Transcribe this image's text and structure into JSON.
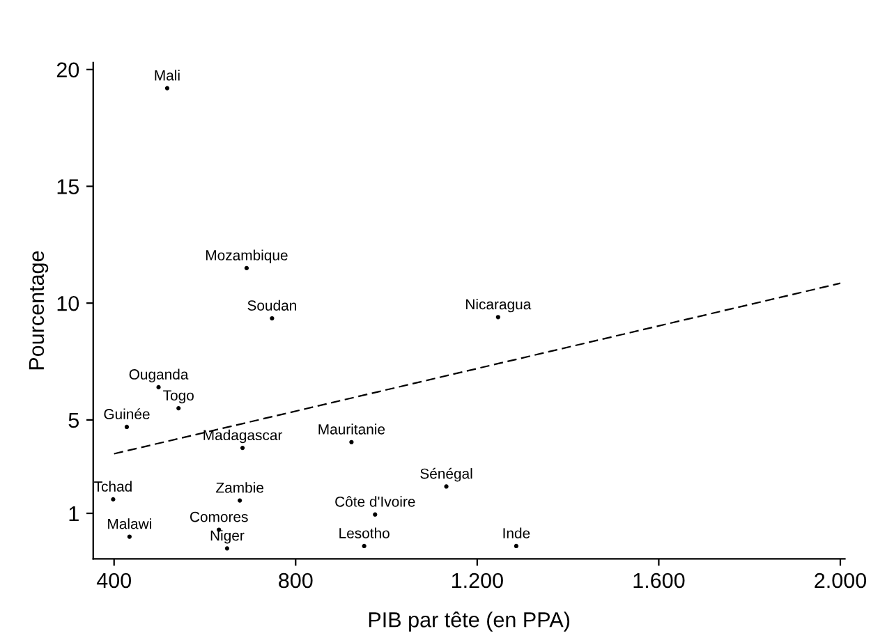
{
  "chart_data": {
    "type": "scatter",
    "xlabel": "PIB par tête (en PPA)",
    "ylabel": "Pourcentage",
    "xlim": [
      354,
      2010
    ],
    "ylim": [
      -0.95,
      20.3
    ],
    "xticks": [
      400,
      800,
      {
        "value": 1200,
        "label": "1.200"
      },
      {
        "value": 1600,
        "label": "1.600"
      },
      {
        "value": 2000,
        "label": "2.000"
      }
    ],
    "yticks": [
      1,
      5,
      10,
      15,
      20
    ],
    "grid": false,
    "legend": false,
    "series": [
      {
        "marker": "circle",
        "color": "#000000",
        "x": [
          517,
          692,
          748,
          498,
          542,
          428,
          683,
          923,
          398,
          677,
          975,
          434,
          631,
          649,
          951,
          1132,
          1246,
          1286
        ],
        "values": [
          19.2,
          11.5,
          9.35,
          6.4,
          5.5,
          4.7,
          3.8,
          4.05,
          1.6,
          1.55,
          0.95,
          0.0,
          0.3,
          -0.5,
          -0.4,
          2.15,
          9.4,
          -0.4
        ],
        "value_labels": [
          "Mali",
          "Mozambique",
          "Soudan",
          "Ouganda",
          "Togo",
          "Guinée",
          "Madagascar",
          "Mauritanie",
          "Tchad",
          "Zambie",
          "Côte d'Ivoire",
          "Malawi",
          "Comores",
          "Niger",
          "Lesotho",
          "Sénégal",
          "Nicaragua",
          "Inde"
        ]
      },
      {
        "type": "line",
        "line_style": "dashed",
        "color": "#000000",
        "x": [
          400,
          2000
        ],
        "values": [
          3.55,
          10.85
        ]
      }
    ]
  }
}
